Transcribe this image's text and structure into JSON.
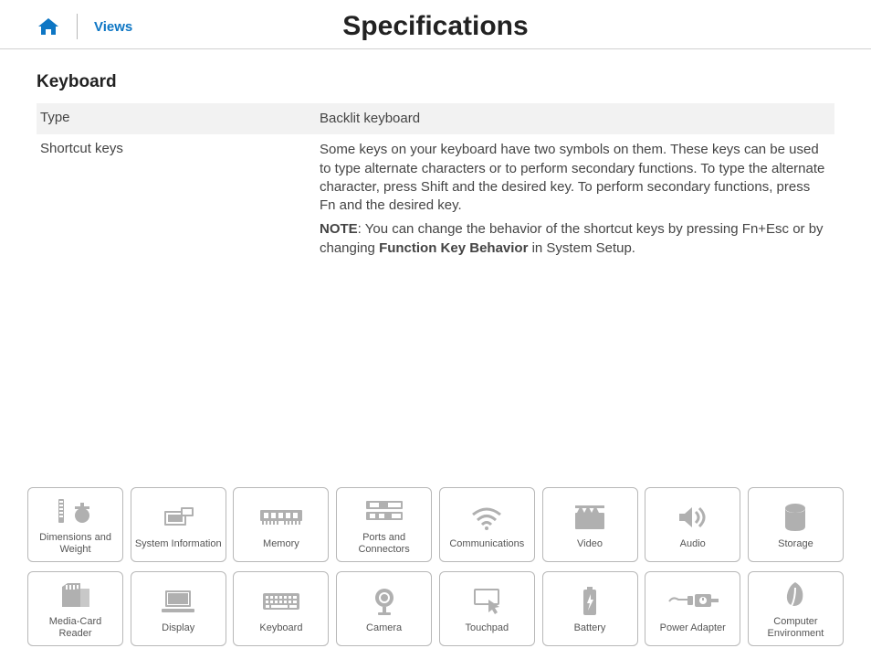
{
  "colors": {
    "accent": "#0d76c4",
    "icon_gray": "#b0b0b0",
    "text": "#333333",
    "border": "#b8b8b8",
    "row_shade": "#f2f2f2",
    "background": "#ffffff"
  },
  "nav": {
    "views_label": "Views",
    "page_title": "Specifications"
  },
  "section": {
    "title": "Keyboard",
    "rows": [
      {
        "label": "Type",
        "value": "Backlit keyboard",
        "shaded": true
      },
      {
        "label": "Shortcut keys",
        "value": "Some keys on your keyboard have two symbols on them. These keys can be used to type alternate characters or to perform secondary functions. To type the alternate character, press Shift and the desired key. To perform secondary functions, press Fn and the desired key.",
        "shaded": false
      }
    ],
    "note": {
      "prefix": "NOTE",
      "before_bold": ": You can change the behavior of the shortcut keys by pressing Fn+Esc or by changing ",
      "bold": "Function Key Behavior",
      "after_bold": " in System Setup."
    }
  },
  "tiles": {
    "row1": [
      {
        "label": "Dimensions and Weight",
        "icon": "dimensions"
      },
      {
        "label": "System Information",
        "icon": "system"
      },
      {
        "label": "Memory",
        "icon": "memory"
      },
      {
        "label": "Ports and Connectors",
        "icon": "ports"
      },
      {
        "label": "Communications",
        "icon": "wifi"
      },
      {
        "label": "Video",
        "icon": "video"
      },
      {
        "label": "Audio",
        "icon": "audio"
      },
      {
        "label": "Storage",
        "icon": "storage"
      }
    ],
    "row2": [
      {
        "label": "Media-Card Reader",
        "icon": "sdcard"
      },
      {
        "label": "Display",
        "icon": "display"
      },
      {
        "label": "Keyboard",
        "icon": "keyboard"
      },
      {
        "label": "Camera",
        "icon": "camera"
      },
      {
        "label": "Touchpad",
        "icon": "touchpad"
      },
      {
        "label": "Battery",
        "icon": "battery"
      },
      {
        "label": "Power Adapter",
        "icon": "power"
      },
      {
        "label": "Computer Environment",
        "icon": "environment"
      }
    ]
  }
}
